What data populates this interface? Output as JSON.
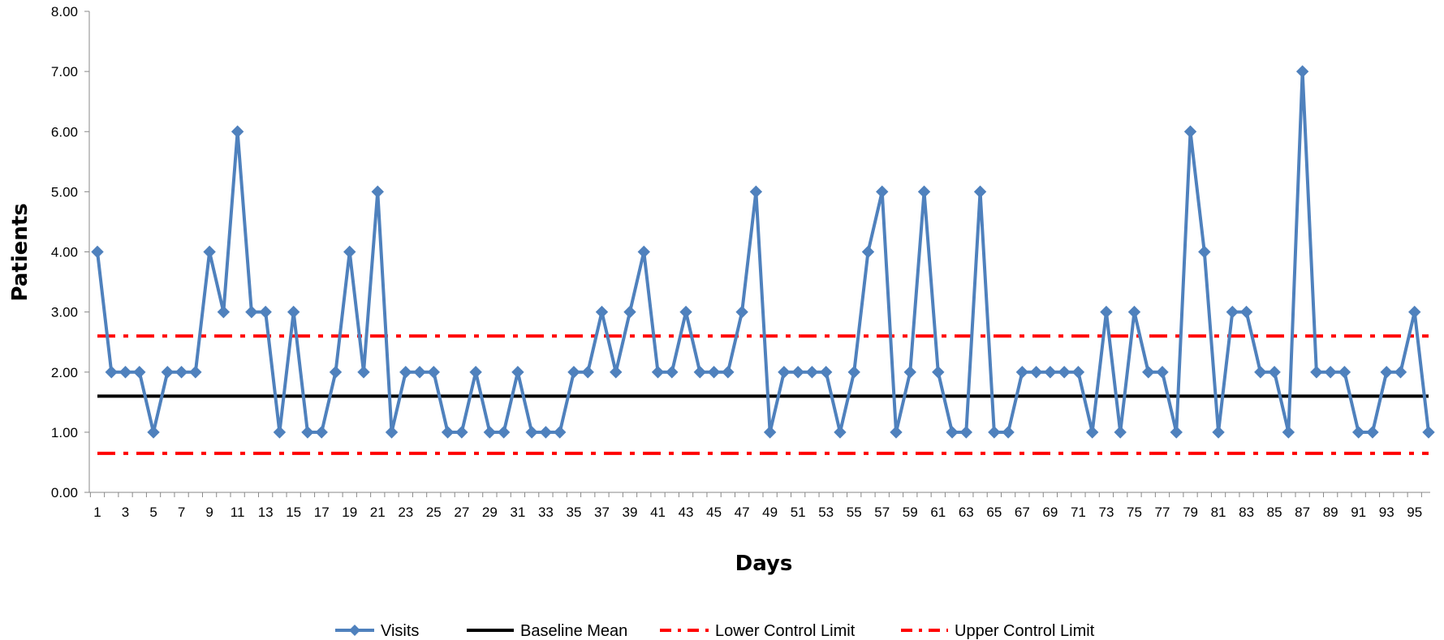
{
  "chart_data": {
    "type": "line",
    "title": "",
    "xlabel": "Days",
    "ylabel": "Patients",
    "ylim": [
      0,
      8
    ],
    "ytick_step": 1,
    "ytick_format_decimals": 2,
    "xlim": [
      1,
      96
    ],
    "xtick_labels": [
      "1",
      "3",
      "5",
      "7",
      "9",
      "11",
      "13",
      "15",
      "17",
      "19",
      "21",
      "23",
      "25",
      "27",
      "29",
      "31",
      "33",
      "35",
      "37",
      "39",
      "41",
      "43",
      "45",
      "47",
      "49",
      "51",
      "53",
      "55",
      "57",
      "59",
      "61",
      "63",
      "65",
      "67",
      "69",
      "71",
      "73",
      "75",
      "77",
      "79",
      "81",
      "83",
      "85",
      "87",
      "89",
      "91",
      "93",
      "95"
    ],
    "grid": false,
    "legend_position": "bottom",
    "series": [
      {
        "name": "Visits",
        "style": "line-diamond-markers",
        "color": "#4F81BD",
        "x": [
          1,
          2,
          3,
          4,
          5,
          6,
          7,
          8,
          9,
          10,
          11,
          12,
          13,
          14,
          15,
          16,
          17,
          18,
          19,
          20,
          21,
          22,
          23,
          24,
          25,
          26,
          27,
          28,
          29,
          30,
          31,
          32,
          33,
          34,
          35,
          36,
          37,
          38,
          39,
          40,
          41,
          42,
          43,
          44,
          45,
          46,
          47,
          48,
          49,
          50,
          51,
          52,
          53,
          54,
          55,
          56,
          57,
          58,
          59,
          60,
          61,
          62,
          63,
          64,
          65,
          66,
          67,
          68,
          69,
          70,
          71,
          72,
          73,
          74,
          75,
          76,
          77,
          78,
          79,
          80,
          81,
          82,
          83,
          84,
          85,
          86,
          87,
          88,
          89,
          90,
          91,
          92,
          93,
          94,
          95,
          96
        ],
        "values": [
          4,
          2,
          2,
          2,
          1,
          2,
          2,
          2,
          4,
          3,
          6,
          3,
          3,
          1,
          3,
          1,
          1,
          2,
          4,
          2,
          5,
          1,
          2,
          2,
          2,
          1,
          1,
          2,
          1,
          1,
          2,
          1,
          1,
          1,
          2,
          2,
          3,
          2,
          3,
          4,
          2,
          2,
          3,
          2,
          2,
          2,
          3,
          5,
          1,
          2,
          2,
          2,
          2,
          1,
          2,
          4,
          5,
          1,
          2,
          5,
          2,
          1,
          1,
          5,
          1,
          1,
          2,
          2,
          2,
          2,
          2,
          1,
          3,
          1,
          3,
          2,
          2,
          1,
          6,
          4,
          1,
          3,
          3,
          2,
          2,
          1,
          7,
          2,
          2,
          2,
          1,
          1,
          2,
          2,
          3,
          1
        ]
      },
      {
        "name": "Baseline Mean",
        "style": "solid",
        "color": "#000000",
        "x": [
          1,
          96
        ],
        "values": [
          1.6,
          1.6
        ]
      },
      {
        "name": "Lower Control Limit",
        "style": "dash-dot",
        "color": "#FF0000",
        "x": [
          1,
          96
        ],
        "values": [
          0.65,
          0.65
        ]
      },
      {
        "name": "Upper Control Limit",
        "style": "dash-dot",
        "color": "#FF0000",
        "x": [
          1,
          96
        ],
        "values": [
          2.6,
          2.6
        ]
      }
    ]
  }
}
